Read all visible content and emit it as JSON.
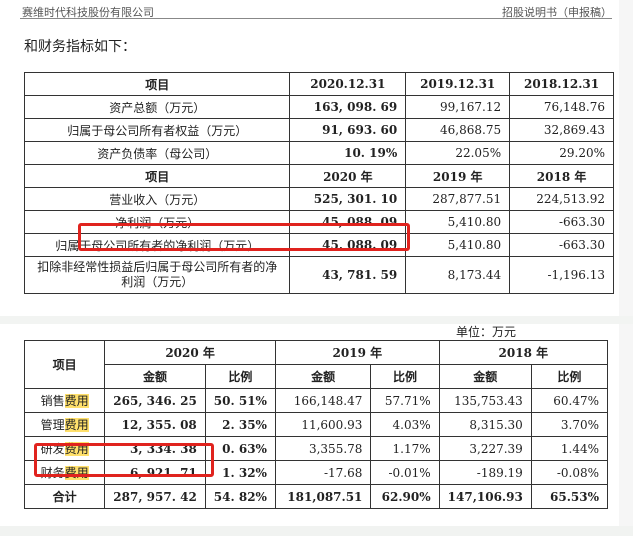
{
  "header": {
    "company": "赛维时代科技股份有限公司",
    "doc": "招股说明书（申报稿）"
  },
  "intro": "和财务指标如下：",
  "table1": {
    "head1": [
      "项目",
      "2020.12.31",
      "2019.12.31",
      "2018.12.31"
    ],
    "rows1": [
      [
        "资产总额（万元）",
        "163, 098. 69",
        "99,167.12",
        "76,148.76"
      ],
      [
        "归属于母公司所有者权益（万元）",
        "91, 693. 60",
        "46,868.75",
        "32,869.43"
      ],
      [
        "资产负债率（母公司）",
        "10. 19%",
        "22.05%",
        "29.20%"
      ]
    ],
    "head2": [
      "项目",
      "2020 年",
      "2019 年",
      "2018 年"
    ],
    "rows2": [
      [
        "营业收入（万元）",
        "525, 301. 10",
        "287,877.51",
        "224,513.92"
      ],
      [
        "净利润（万元）",
        "45, 088. 09",
        "5,410.80",
        "-663.30"
      ],
      [
        "归属于母公司所有者的净利润（万元）",
        "45, 088. 09",
        "5,410.80",
        "-663.30"
      ],
      [
        "扣除非经常性损益后归属于母公司所有者的净利润（万元）",
        "43, 781. 59",
        "8,173.44",
        "-1,196.13"
      ]
    ]
  },
  "unit": "单位：万元",
  "table2": {
    "col_item": "项目",
    "years": [
      "2020 年",
      "2019 年",
      "2018 年"
    ],
    "sub": [
      "金额",
      "比例",
      "金额",
      "比例",
      "金额",
      "比例"
    ],
    "rows": [
      {
        "pre": "销售",
        "hl": "费用",
        "vals": [
          "265, 346. 25",
          "50. 51%",
          "166,148.47",
          "57.71%",
          "135,753.43",
          "60.47%"
        ]
      },
      {
        "pre": "管理",
        "hl": "费用",
        "vals": [
          "12, 355. 08",
          "2. 35%",
          "11,600.93",
          "4.03%",
          "8,315.30",
          "3.70%"
        ]
      },
      {
        "pre": "研发",
        "hl": "费用",
        "vals": [
          "3, 334. 38",
          "0. 63%",
          "3,355.78",
          "1.17%",
          "3,227.39",
          "1.44%"
        ]
      },
      {
        "pre": "财务",
        "hl": "费用",
        "vals": [
          "6, 921. 71",
          "1. 32%",
          "-17.68",
          "-0.01%",
          "-189.19",
          "-0.08%"
        ]
      }
    ],
    "total": {
      "label": "合计",
      "vals": [
        "287, 957. 42",
        "54. 82%",
        "181,087.51",
        "62.90%",
        "147,106.93",
        "65.53%"
      ]
    }
  },
  "colors": {
    "highlight": "#ffe06b",
    "redbox": "#e0231e"
  }
}
